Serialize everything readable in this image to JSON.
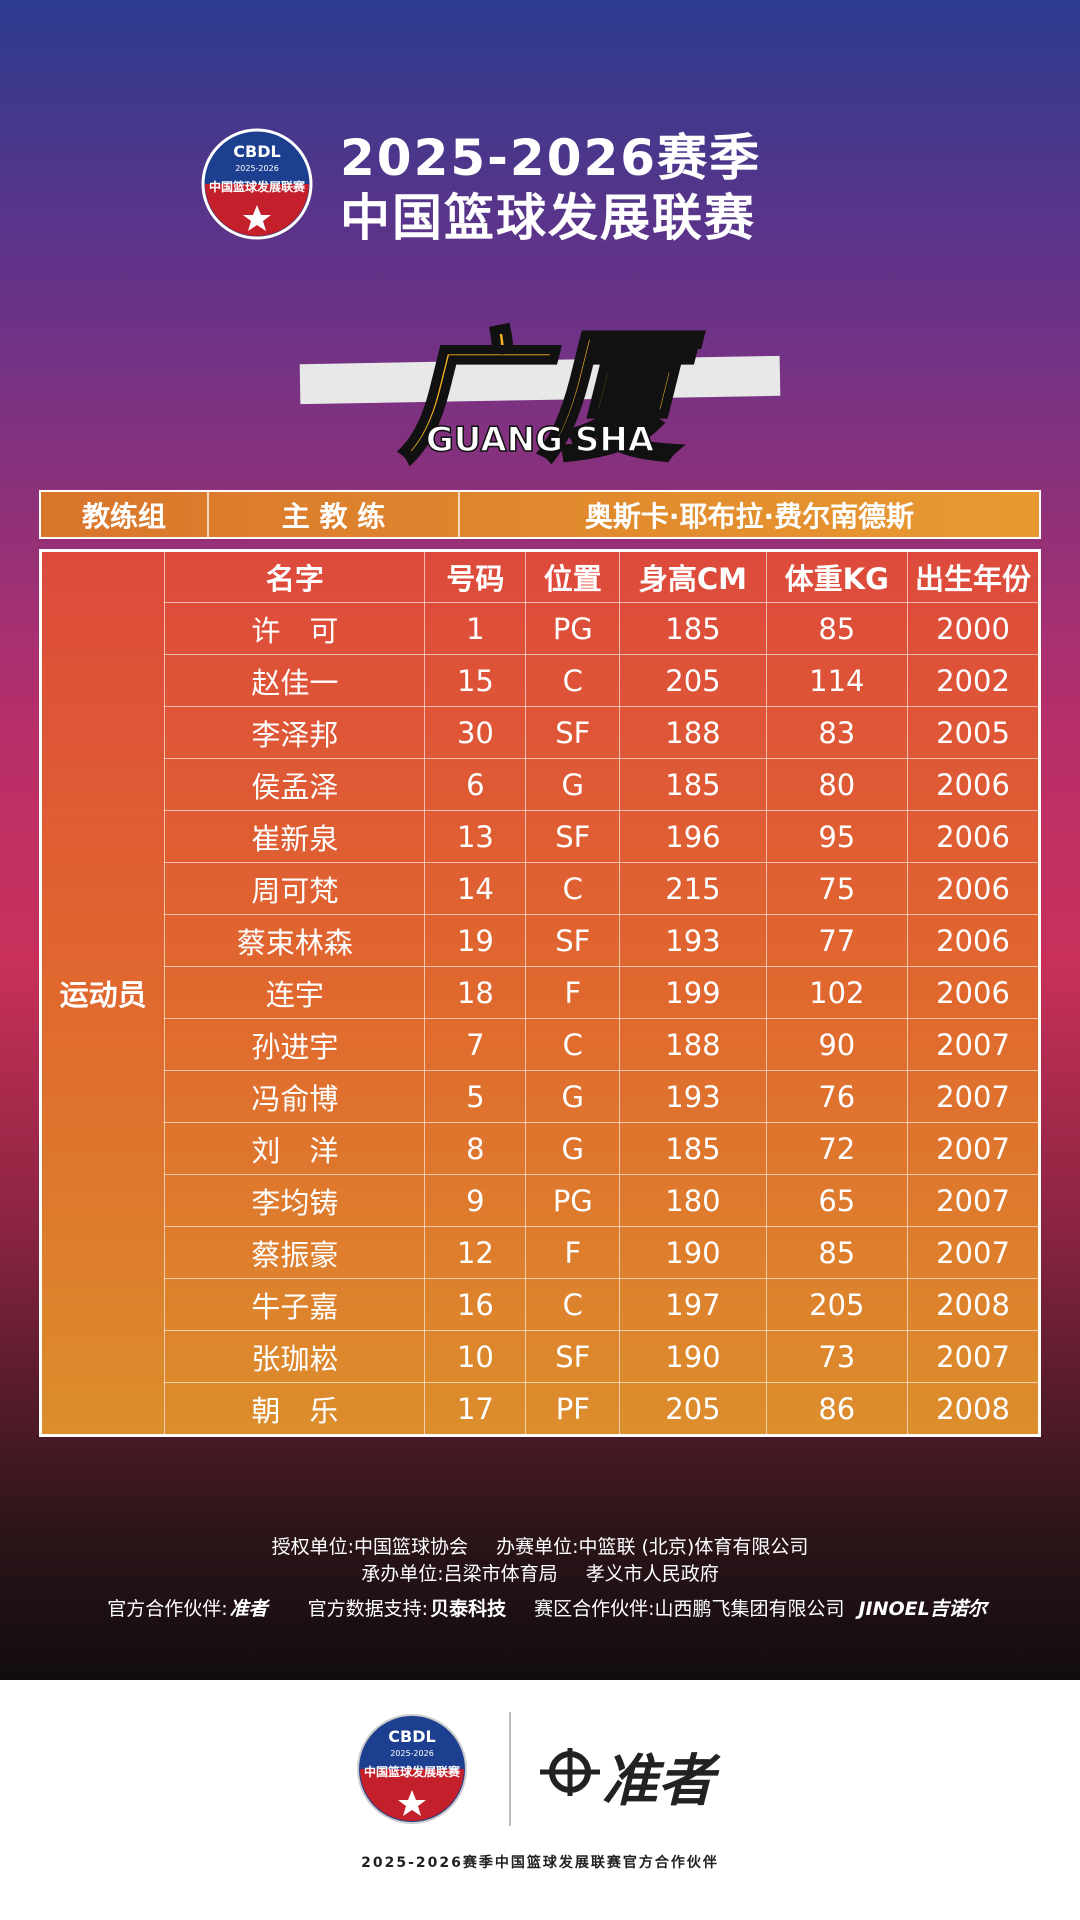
{
  "header": {
    "logo": {
      "abbr": "CBDL",
      "years": "2025-2026",
      "name": "中国篮球发展联赛"
    },
    "season": "2025-2026赛季",
    "league": "中国篮球发展联赛"
  },
  "team": {
    "name": "广厦",
    "name_en": "GUANG SHA"
  },
  "coach": {
    "label": "教练组",
    "role": "主 教 练",
    "name": "奥斯卡·耶布拉·费尔南德斯"
  },
  "roster": {
    "label": "运动员",
    "columns": [
      "名字",
      "号码",
      "位置",
      "身高CM",
      "体重KG",
      "出生年份"
    ],
    "rows": [
      [
        "许　可",
        1,
        "PG",
        185,
        85,
        2000
      ],
      [
        "赵佳一",
        15,
        "C",
        205,
        114,
        2002
      ],
      [
        "李泽邦",
        30,
        "SF",
        188,
        83,
        2005
      ],
      [
        "侯孟泽",
        6,
        "G",
        185,
        80,
        2006
      ],
      [
        "崔新泉",
        13,
        "SF",
        196,
        95,
        2006
      ],
      [
        "周可梵",
        14,
        "C",
        215,
        75,
        2006
      ],
      [
        "蔡束林森",
        19,
        "SF",
        193,
        77,
        2006
      ],
      [
        "连宇",
        18,
        "F",
        199,
        102,
        2006
      ],
      [
        "孙进宇",
        7,
        "C",
        188,
        90,
        2007
      ],
      [
        "冯俞博",
        5,
        "G",
        193,
        76,
        2007
      ],
      [
        "刘　洋",
        8,
        "G",
        185,
        72,
        2007
      ],
      [
        "李均铸",
        9,
        "PG",
        180,
        65,
        2007
      ],
      [
        "蔡振豪",
        12,
        "F",
        190,
        85,
        2007
      ],
      [
        "牛子嘉",
        16,
        "C",
        197,
        205,
        2008
      ],
      [
        "张珈崧",
        10,
        "SF",
        190,
        73,
        2007
      ],
      [
        "朝　乐",
        17,
        "PF",
        205,
        86,
        2008
      ]
    ]
  },
  "footer": {
    "line1": [
      "授权单位:中国篮球协会",
      "办赛单位:中篮联 (北京)体育有限公司"
    ],
    "line2": [
      "承办单位:吕梁市体育局",
      "孝义市人民政府"
    ],
    "line3": [
      "官方合作伙伴:",
      "准者",
      "官方数据支持:",
      "贝泰科技",
      "赛区合作伙伴:山西鹏飞集团有限公司",
      "JINOEL吉诺尔"
    ]
  },
  "partner": {
    "brand": "准者",
    "caption": "2025-2026赛季中国篮球发展联赛官方合作伙伴"
  }
}
